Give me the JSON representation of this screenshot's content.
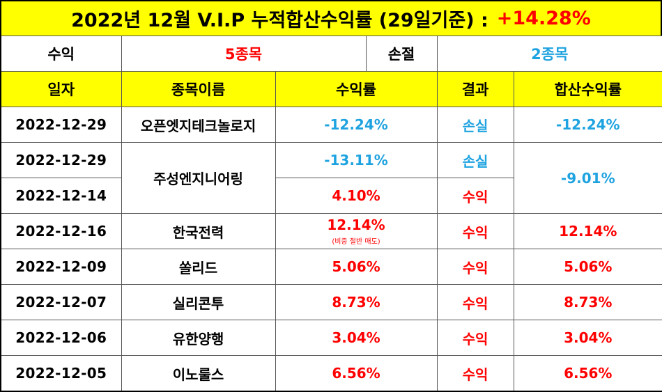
{
  "title": {
    "text": "2022년 12월 V.I.P 누적합산수익률 (29일기준) :",
    "rate": "+14.28%"
  },
  "summary": {
    "profit_label": "수익",
    "profit_value": "5종목",
    "loss_label": "손절",
    "loss_value": "2종목"
  },
  "headers": {
    "date": "일자",
    "name": "종목이름",
    "return": "수익률",
    "result": "결과",
    "combined": "합산수익률"
  },
  "rows": [
    {
      "date": "2022-12-29",
      "name": "오픈엣지테크놀로지",
      "return": "-12.24%",
      "result": "손실",
      "combined": "-12.24%"
    },
    {
      "date": "2022-12-29",
      "name": "주성엔지니어링",
      "return": "-13.11%",
      "result": "손실",
      "combined": "-9.01%"
    },
    {
      "date": "2022-12-14",
      "return": "4.10%",
      "result": "수익"
    },
    {
      "date": "2022-12-16",
      "name": "한국전력",
      "return": "12.14%",
      "note": "(비중 절반 매도)",
      "result": "수익",
      "combined": "12.14%"
    },
    {
      "date": "2022-12-09",
      "name": "쏠리드",
      "return": "5.06%",
      "result": "수익",
      "combined": "5.06%"
    },
    {
      "date": "2022-12-07",
      "name": "실리콘투",
      "return": "8.73%",
      "result": "수익",
      "combined": "8.73%"
    },
    {
      "date": "2022-12-06",
      "name": "유한양행",
      "return": "3.04%",
      "result": "수익",
      "combined": "3.04%"
    },
    {
      "date": "2022-12-05",
      "name": "이노룰스",
      "return": "6.56%",
      "result": "수익",
      "combined": "6.56%"
    }
  ],
  "colors": {
    "highlight": "#ffff00",
    "profit": "#ff0000",
    "loss": "#1fa3e0"
  }
}
